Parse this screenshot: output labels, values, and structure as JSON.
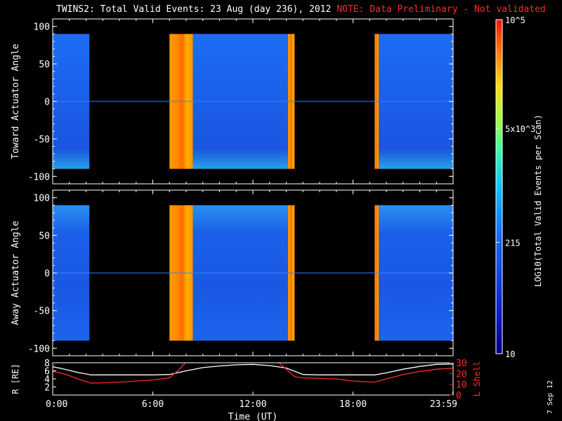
{
  "title": {
    "main": "TWINS2: Total Valid Events: 23 Aug (day 236), 2012",
    "note": "NOTE: Data Preliminary - Not validated"
  },
  "date_stamp": "7 Sep 12",
  "colors": {
    "background": "#000000",
    "axes": "#ffffff",
    "note_red": "#ff2a2a",
    "l_shell_red": "#ff2a2a",
    "r_white": "#ffffff"
  },
  "chart_data": [
    {
      "type": "heatmap",
      "panel": "toward",
      "ylabel": "Toward Actuator Angle",
      "ylim": [
        -110,
        110
      ],
      "yticks": [
        100,
        50,
        0,
        -50,
        -100
      ],
      "data_range_deg": [
        -90,
        90
      ],
      "xlim_hours": [
        0,
        24
      ],
      "segments": [
        {
          "start": 0.0,
          "end": 2.2,
          "level": "low"
        },
        {
          "start": 7.0,
          "end": 8.4,
          "level": "high"
        },
        {
          "start": 8.4,
          "end": 14.1,
          "level": "low"
        },
        {
          "start": 14.1,
          "end": 14.5,
          "level": "high"
        },
        {
          "start": 19.3,
          "end": 19.55,
          "level": "high"
        },
        {
          "start": 19.55,
          "end": 24.0,
          "level": "low"
        }
      ]
    },
    {
      "type": "heatmap",
      "panel": "away",
      "ylabel": "Away Actuator Angle",
      "ylim": [
        -110,
        110
      ],
      "yticks": [
        100,
        50,
        0,
        -50,
        -100
      ],
      "data_range_deg": [
        -90,
        90
      ],
      "xlim_hours": [
        0,
        24
      ],
      "segments": [
        {
          "start": 0.0,
          "end": 2.2,
          "level": "low"
        },
        {
          "start": 7.0,
          "end": 8.4,
          "level": "high"
        },
        {
          "start": 8.4,
          "end": 14.1,
          "level": "low"
        },
        {
          "start": 14.1,
          "end": 14.5,
          "level": "high"
        },
        {
          "start": 19.3,
          "end": 19.55,
          "level": "high"
        },
        {
          "start": 19.55,
          "end": 24.0,
          "level": "low"
        }
      ]
    },
    {
      "type": "line",
      "panel": "ephemeris",
      "xlabel": "Time (UT)",
      "xticks": [
        "0:00",
        "6:00",
        "12:00",
        "18:00",
        "23:59"
      ],
      "xtick_hours": [
        0,
        6,
        12,
        18,
        23.983
      ],
      "ylabel_left": "R [RE]",
      "ylabel_right": "L Shell",
      "yticks_left": [
        8,
        6,
        4,
        2
      ],
      "yticks_right": [
        30,
        20,
        10,
        0
      ],
      "ylim_left": [
        0,
        8
      ],
      "ylim_right": [
        0,
        30
      ],
      "series": [
        {
          "name": "R [RE]",
          "color": "#ffffff",
          "axis": "left",
          "points": [
            [
              0,
              7.0
            ],
            [
              0.5,
              6.6
            ],
            [
              1,
              6.1
            ],
            [
              1.5,
              5.6
            ],
            [
              2.3,
              5.0
            ],
            [
              4,
              5.0
            ],
            [
              6,
              5.0
            ],
            [
              7,
              5.1
            ],
            [
              8,
              6.0
            ],
            [
              9,
              6.8
            ],
            [
              10,
              7.2
            ],
            [
              11,
              7.5
            ],
            [
              12,
              7.6
            ],
            [
              13,
              7.3
            ],
            [
              14,
              6.7
            ],
            [
              14.5,
              5.9
            ],
            [
              15,
              5.1
            ],
            [
              16,
              5.0
            ],
            [
              18,
              5.0
            ],
            [
              19.3,
              5.0
            ],
            [
              20,
              5.5
            ],
            [
              21,
              6.4
            ],
            [
              22,
              7.1
            ],
            [
              23,
              7.6
            ],
            [
              23.983,
              7.7
            ]
          ]
        },
        {
          "name": "L Shell",
          "color": "#ff2a2a",
          "axis": "right",
          "points": [
            [
              0,
              22
            ],
            [
              0.5,
              20.5
            ],
            [
              1,
              18
            ],
            [
              1.5,
              15
            ],
            [
              2.3,
              11
            ],
            [
              4,
              12
            ],
            [
              6,
              14
            ],
            [
              7,
              16
            ],
            [
              7.6,
              24
            ],
            [
              8.0,
              31
            ],
            [
              13.5,
              31
            ],
            [
              14.0,
              24
            ],
            [
              14.5,
              17
            ],
            [
              15,
              16
            ],
            [
              17,
              15
            ],
            [
              18,
              13
            ],
            [
              19.3,
              12
            ],
            [
              20,
              15
            ],
            [
              21,
              19
            ],
            [
              22,
              22
            ],
            [
              23,
              24
            ],
            [
              23.983,
              25
            ]
          ]
        }
      ]
    }
  ],
  "colorbar": {
    "label": "LOG10(Total Valid Events per Scan)",
    "ticks": [
      {
        "label": "10^5",
        "value": 100000
      },
      {
        "label": "5x10^3",
        "value": 5000
      },
      {
        "label": "215",
        "value": 215
      },
      {
        "label": "10",
        "value": 10
      }
    ],
    "range": [
      10,
      100000
    ]
  }
}
